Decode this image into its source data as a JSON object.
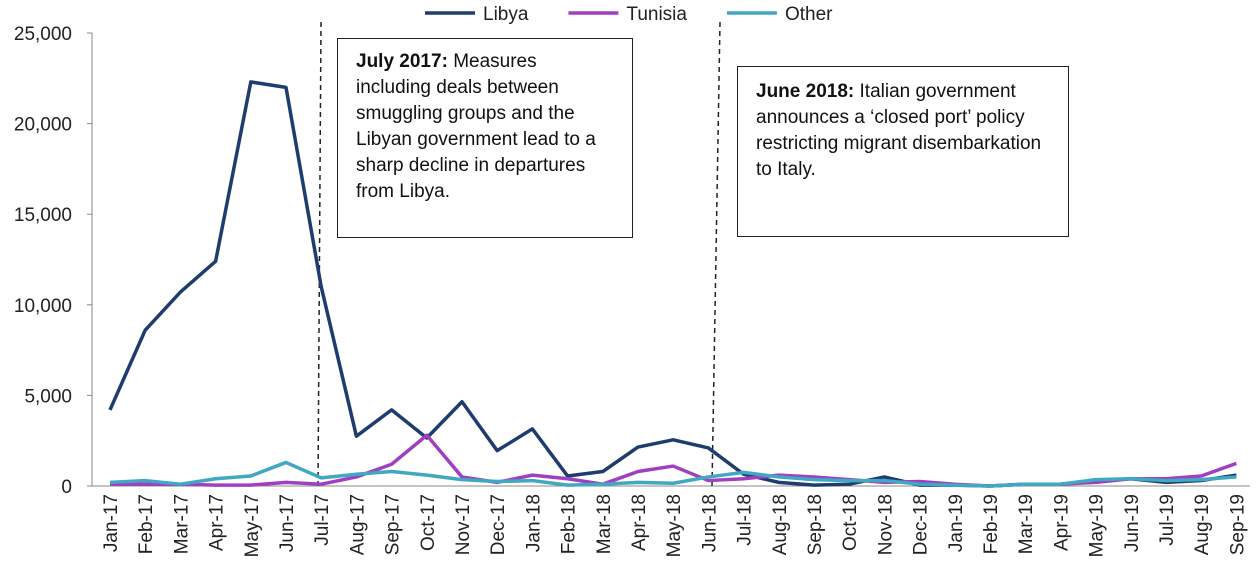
{
  "chart_data": {
    "type": "line",
    "categories": [
      "Jan-17",
      "Feb-17",
      "Mar-17",
      "Apr-17",
      "May-17",
      "Jun-17",
      "Jul-17",
      "Aug-17",
      "Sep-17",
      "Oct-17",
      "Nov-17",
      "Dec-17",
      "Jan-18",
      "Feb-18",
      "Mar-18",
      "Apr-18",
      "May-18",
      "Jun-18",
      "Jul-18",
      "Aug-18",
      "Sep-18",
      "Oct-18",
      "Nov-18",
      "Dec-18",
      "Jan-19",
      "Feb-19",
      "Mar-19",
      "Apr-19",
      "May-19",
      "Jun-19",
      "Jul-19",
      "Aug-19",
      "Sep-19"
    ],
    "series": [
      {
        "name": "Libya",
        "color": "#1f3c6e",
        "values": [
          4200,
          8600,
          10700,
          12400,
          22300,
          22000,
          11000,
          2750,
          4200,
          2650,
          4650,
          1950,
          3150,
          550,
          800,
          2150,
          2550,
          2100,
          650,
          200,
          50,
          100,
          500,
          50,
          50,
          0,
          100,
          100,
          300,
          400,
          200,
          300,
          600
        ]
      },
      {
        "name": "Tunisia",
        "color": "#a040c0",
        "values": [
          100,
          100,
          100,
          50,
          50,
          200,
          100,
          500,
          1200,
          2800,
          500,
          200,
          600,
          400,
          100,
          800,
          1100,
          300,
          400,
          600,
          500,
          350,
          200,
          250,
          100,
          0,
          100,
          100,
          200,
          400,
          400,
          550,
          1250
        ]
      },
      {
        "name": "Other",
        "color": "#40a8c0",
        "values": [
          200,
          300,
          100,
          400,
          550,
          1300,
          450,
          650,
          800,
          600,
          350,
          250,
          300,
          50,
          100,
          200,
          150,
          500,
          750,
          500,
          350,
          300,
          300,
          100,
          50,
          0,
          100,
          100,
          350,
          400,
          300,
          350,
          500
        ]
      }
    ],
    "ylim": [
      0,
      25000
    ],
    "yticks": [
      0,
      {
        "value": 5000,
        "label": "5,000"
      },
      {
        "value": 10000,
        "label": "10,000"
      },
      {
        "value": 15000,
        "label": "15,000"
      },
      {
        "value": 20000,
        "label": "20,000"
      },
      {
        "value": 25000,
        "label": "25,000"
      }
    ],
    "legend": "top",
    "annotations": [
      {
        "label": "July 2017:",
        "text": "Measures including deals between smuggling groups and the Libyan government lead to a sharp decline in departures from Libya."
      },
      {
        "label": "June 2018:",
        "text": "Italian government announces a ‘closed port’ policy restricting migrant disembarkation to Italy."
      }
    ]
  }
}
